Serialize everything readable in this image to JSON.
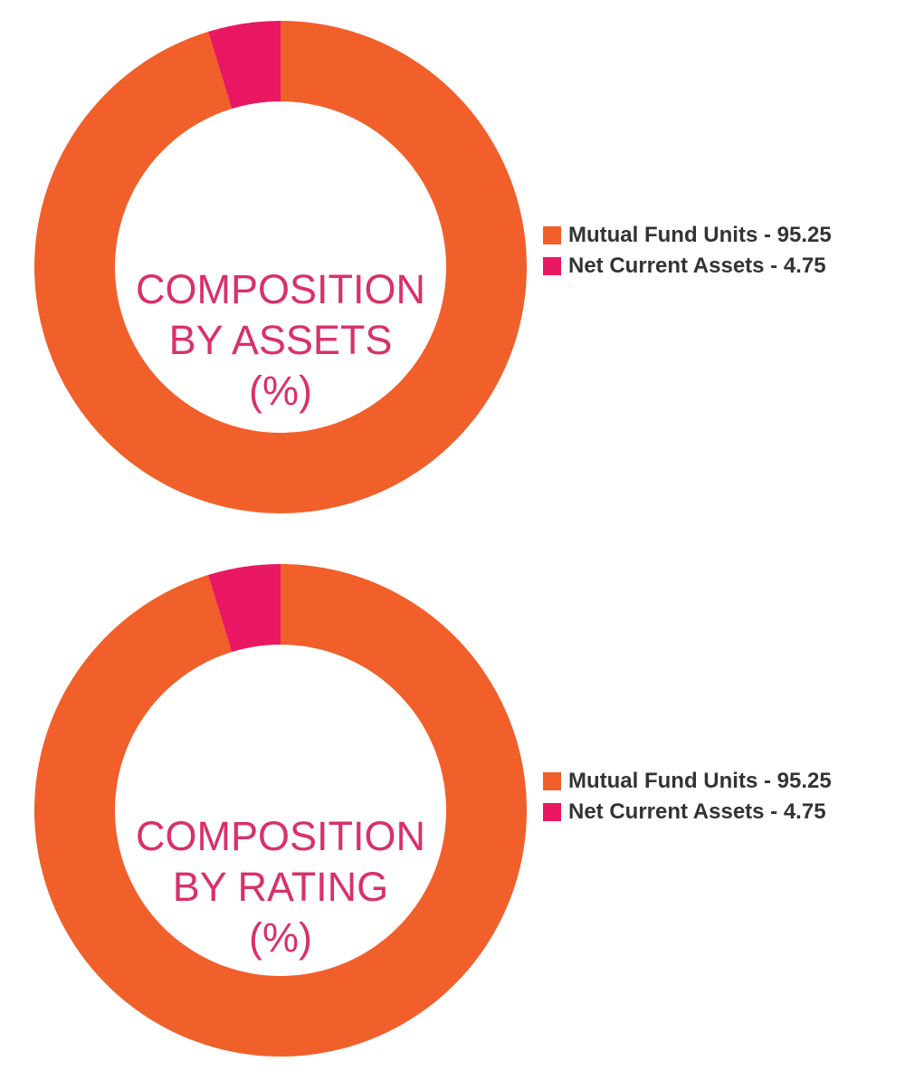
{
  "colors": {
    "primary": "#f15f2a",
    "secondary": "#ea1763",
    "title": "#d9306c",
    "legend_text": "#333333"
  },
  "chart_data": [
    {
      "type": "pie",
      "title_lines": [
        "COMPOSITION",
        "BY ASSETS",
        "(%)"
      ],
      "categories": [
        "Mutual Fund Units",
        "Net Current Assets"
      ],
      "values": [
        95.25,
        4.75
      ],
      "legend_labels": [
        "Mutual Fund Units - 95.25",
        "Net Current Assets - 4.75"
      ],
      "legend_position": "right"
    },
    {
      "type": "pie",
      "title_lines": [
        "COMPOSITION",
        "BY RATING",
        "(%)"
      ],
      "categories": [
        "Mutual Fund Units",
        "Net Current Assets"
      ],
      "values": [
        95.25,
        4.75
      ],
      "legend_labels": [
        "Mutual Fund Units - 95.25",
        "Net Current Assets - 4.75"
      ],
      "legend_position": "right"
    }
  ]
}
